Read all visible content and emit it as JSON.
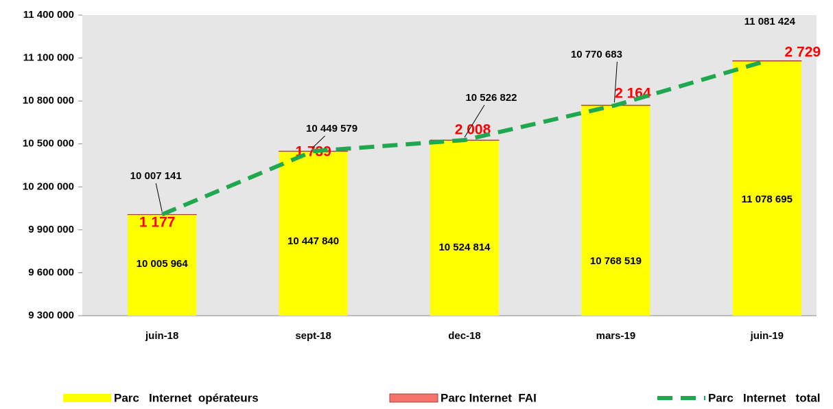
{
  "chart_data": {
    "type": "bar_line",
    "categories": [
      "juin-18",
      "sept-18",
      "dec-18",
      "mars-19",
      "juin-19"
    ],
    "series": [
      {
        "name": "Parc   Internet  opérateurs",
        "color": "#ffff00",
        "kind": "bar",
        "values": [
          10005964,
          10447840,
          10524814,
          10768519,
          11078695
        ],
        "value_labels": [
          "10 005 964",
          "10 447 840",
          "10 524 814",
          "10 768 519",
          "11 078 695"
        ]
      },
      {
        "name": "Parc Internet  FAI",
        "color": "#f4736b",
        "kind": "bar",
        "values": [
          1177,
          1739,
          2008,
          2164,
          2729
        ],
        "value_labels": [
          "1 177",
          "1 739",
          "2 008",
          "2 164",
          "2 729"
        ]
      },
      {
        "name": "Parc   Internet   total",
        "color": "#1fa84f",
        "kind": "line",
        "values": [
          10007141,
          10449579,
          10526822,
          10770683,
          11081424
        ],
        "value_labels": [
          "10 007 141",
          "10 449 579",
          "10 526 822",
          "10 770 683",
          "11 081 424"
        ]
      }
    ],
    "ylim": [
      9300000,
      11400000
    ],
    "yticks": [
      {
        "value": 9300000,
        "label": "9 300 000"
      },
      {
        "value": 9600000,
        "label": "9 600 000"
      },
      {
        "value": 9900000,
        "label": "9 900 000"
      },
      {
        "value": 10200000,
        "label": "10 200 000"
      },
      {
        "value": 10500000,
        "label": "10 500 000"
      },
      {
        "value": 10800000,
        "label": "10 800 000"
      },
      {
        "value": 11100000,
        "label": "11 100 000"
      },
      {
        "value": 11400000,
        "label": "11 400 000"
      }
    ],
    "grid": false,
    "legend": "bottom"
  }
}
